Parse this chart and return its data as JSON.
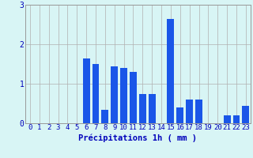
{
  "categories": [
    0,
    1,
    2,
    3,
    4,
    5,
    6,
    7,
    8,
    9,
    10,
    11,
    12,
    13,
    14,
    15,
    16,
    17,
    18,
    19,
    20,
    21,
    22,
    23
  ],
  "values": [
    0,
    0,
    0,
    0,
    0,
    0,
    1.65,
    1.5,
    0.35,
    1.45,
    1.4,
    1.3,
    0.75,
    0.75,
    0,
    2.65,
    0.4,
    0.6,
    0.6,
    0,
    0,
    0.2,
    0.2,
    0.45
  ],
  "bar_color": "#1a56e8",
  "background_color": "#d8f5f5",
  "grid_color": "#b0b0b0",
  "text_color": "#0000bb",
  "xlabel": "Précipitations 1h ( mm )",
  "ylim": [
    0,
    3
  ],
  "yticks": [
    0,
    1,
    2,
    3
  ],
  "tick_fontsize": 6.5,
  "label_fontsize": 7.5
}
